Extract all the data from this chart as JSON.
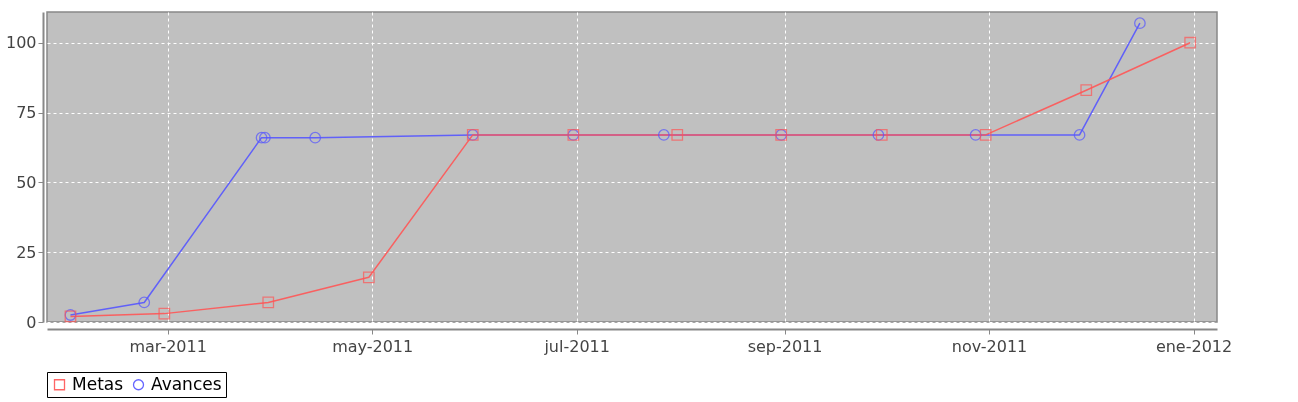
{
  "chart_data": {
    "type": "line",
    "xlim": [
      "2011-01-24",
      "2012-01-08"
    ],
    "xticks": [
      {
        "value": "2011-03-01",
        "label": "mar-2011"
      },
      {
        "value": "2011-05-01",
        "label": "may-2011"
      },
      {
        "value": "2011-07-01",
        "label": "jul-2011"
      },
      {
        "value": "2011-09-01",
        "label": "sep-2011"
      },
      {
        "value": "2011-11-01",
        "label": "nov-2011"
      },
      {
        "value": "2012-01-01",
        "label": "ene-2012"
      }
    ],
    "ylim": [
      0,
      111
    ],
    "yticks": [
      0,
      25,
      50,
      75,
      100
    ],
    "grid": true,
    "legend": "bottom",
    "series": [
      {
        "name": "Metas",
        "color": "#ff5555",
        "marker": "square",
        "x": [
          "2011-01-31",
          "2011-02-28",
          "2011-03-31",
          "2011-04-30",
          "2011-05-31",
          "2011-06-30",
          "2011-07-31",
          "2011-08-31",
          "2011-09-30",
          "2011-10-31",
          "2011-11-30",
          "2011-12-31"
        ],
        "values": [
          2,
          3,
          7,
          16,
          67,
          67,
          67,
          67,
          67,
          67,
          83,
          100
        ]
      },
      {
        "name": "Avances",
        "color": "#5555ff",
        "marker": "circle",
        "x": [
          "2011-01-31",
          "2011-02-22",
          "2011-03-29",
          "2011-03-30",
          "2011-04-14",
          "2011-05-31",
          "2011-06-30",
          "2011-07-27",
          "2011-08-31",
          "2011-09-29",
          "2011-10-28",
          "2011-11-28",
          "2011-12-16"
        ],
        "values": [
          2.5,
          7,
          66,
          66,
          66,
          67,
          67,
          67,
          67,
          67,
          67,
          67,
          107
        ]
      }
    ]
  }
}
